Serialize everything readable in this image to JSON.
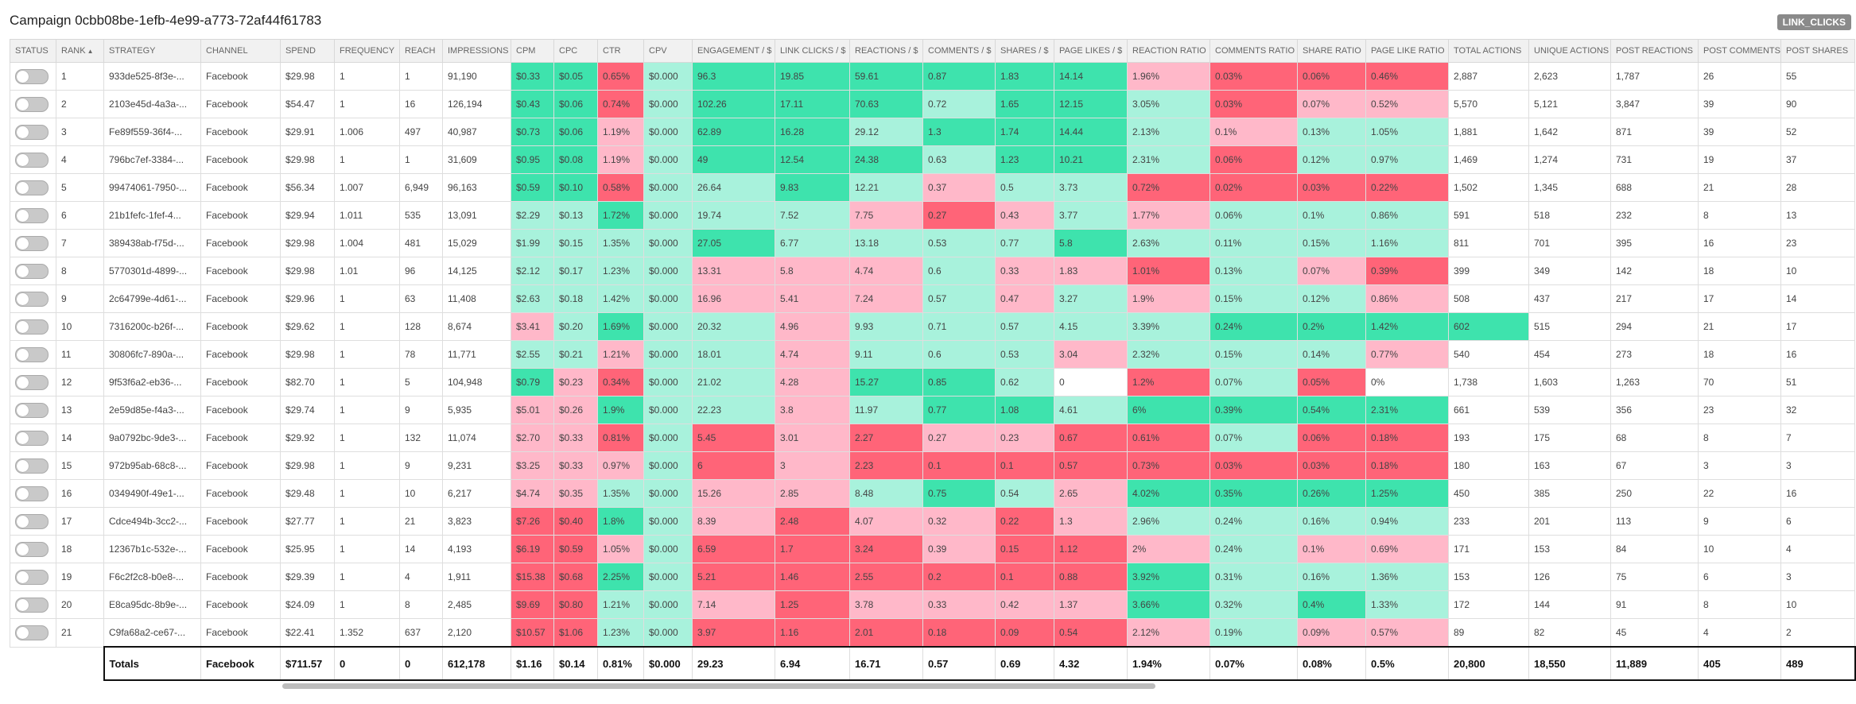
{
  "title": "Campaign 0cbb08be-1efb-4e99-a773-72af44f61783",
  "badge": "LINK_CLICKS",
  "table": {
    "columns": [
      "STATUS",
      "RANK",
      "STRATEGY",
      "CHANNEL",
      "SPEND",
      "FREQUENCY",
      "REACH",
      "IMPRESSIONS",
      "CPM",
      "CPC",
      "CTR",
      "CPV",
      "ENGAGEMENT / $",
      "LINK CLICKS / $",
      "REACTIONS / $",
      "COMMENTS / $",
      "SHARES / $",
      "PAGE LIKES / $",
      "REACTION RATIO",
      "COMMENTS RATIO",
      "SHARE RATIO",
      "PAGE LIKE RATIO",
      "TOTAL ACTIONS",
      "UNIQUE ACTIONS",
      "POST REACTIONS",
      "POST COMMENTS",
      "POST SHARES"
    ],
    "tone_colors": {
      "G": "#3ee3ad",
      "l": "#a8f2dc",
      "p": "#ffb8c9",
      "R": "#ff6478",
      "w": "#ffffff"
    },
    "rows": [
      {
        "cells": [
          "1",
          "933de525-8f3e-...",
          "Facebook",
          "$29.98",
          "1",
          "1",
          "91,190",
          "$0.33",
          "$0.05",
          "0.65%",
          "$0.000",
          "96.3",
          "19.85",
          "59.61",
          "0.87",
          "1.83",
          "14.14",
          "1.96%",
          "0.03%",
          "0.06%",
          "0.46%",
          "2,887",
          "2,623",
          "1,787",
          "26",
          "55"
        ],
        "tones": "GGRlGGGGGGpRRR"
      },
      {
        "cells": [
          "2",
          "2103e45d-4a3a-...",
          "Facebook",
          "$54.47",
          "1",
          "16",
          "126,194",
          "$0.43",
          "$0.06",
          "0.74%",
          "$0.000",
          "102.26",
          "17.11",
          "70.63",
          "0.72",
          "1.65",
          "12.15",
          "3.05%",
          "0.03%",
          "0.07%",
          "0.52%",
          "5,570",
          "5,121",
          "3,847",
          "39",
          "90"
        ],
        "tones": "GGRlGGGlGGlRpp"
      },
      {
        "cells": [
          "3",
          "Fe89f559-36f4-...",
          "Facebook",
          "$29.91",
          "1.006",
          "497",
          "40,987",
          "$0.73",
          "$0.06",
          "1.19%",
          "$0.000",
          "62.89",
          "16.28",
          "29.12",
          "1.3",
          "1.74",
          "14.44",
          "2.13%",
          "0.1%",
          "0.13%",
          "1.05%",
          "1,881",
          "1,642",
          "871",
          "39",
          "52"
        ],
        "tones": "GGplGGlGGGlpll"
      },
      {
        "cells": [
          "4",
          "796bc7ef-3384-...",
          "Facebook",
          "$29.98",
          "1",
          "1",
          "31,609",
          "$0.95",
          "$0.08",
          "1.19%",
          "$0.000",
          "49",
          "12.54",
          "24.38",
          "0.63",
          "1.23",
          "10.21",
          "2.31%",
          "0.06%",
          "0.12%",
          "0.97%",
          "1,469",
          "1,274",
          "731",
          "19",
          "37"
        ],
        "tones": "GGplGGGlGGlRll"
      },
      {
        "cells": [
          "5",
          "99474061-7950-...",
          "Facebook",
          "$56.34",
          "1.007",
          "6,949",
          "96,163",
          "$0.59",
          "$0.10",
          "0.58%",
          "$0.000",
          "26.64",
          "9.83",
          "12.21",
          "0.37",
          "0.5",
          "3.73",
          "0.72%",
          "0.02%",
          "0.03%",
          "0.22%",
          "1,502",
          "1,345",
          "688",
          "21",
          "28"
        ],
        "tones": "GGRllGlpllRRRR"
      },
      {
        "cells": [
          "6",
          "21b1fefc-1fef-4...",
          "Facebook",
          "$29.94",
          "1.011",
          "535",
          "13,091",
          "$2.29",
          "$0.13",
          "1.72%",
          "$0.000",
          "19.74",
          "7.52",
          "7.75",
          "0.27",
          "0.43",
          "3.77",
          "1.77%",
          "0.06%",
          "0.1%",
          "0.86%",
          "591",
          "518",
          "232",
          "8",
          "13"
        ],
        "tones": "llGlllpRplplll"
      },
      {
        "cells": [
          "7",
          "389438ab-f75d-...",
          "Facebook",
          "$29.98",
          "1.004",
          "481",
          "15,029",
          "$1.99",
          "$0.15",
          "1.35%",
          "$0.000",
          "27.05",
          "6.77",
          "13.18",
          "0.53",
          "0.77",
          "5.8",
          "2.63%",
          "0.11%",
          "0.15%",
          "1.16%",
          "811",
          "701",
          "395",
          "16",
          "23"
        ],
        "tones": "llllGllllGllll"
      },
      {
        "cells": [
          "8",
          "5770301d-4899-...",
          "Facebook",
          "$29.98",
          "1.01",
          "96",
          "14,125",
          "$2.12",
          "$0.17",
          "1.23%",
          "$0.000",
          "13.31",
          "5.8",
          "4.74",
          "0.6",
          "0.33",
          "1.83",
          "1.01%",
          "0.13%",
          "0.07%",
          "0.39%",
          "399",
          "349",
          "142",
          "18",
          "10"
        ],
        "tones": "llllppplppRlpR"
      },
      {
        "cells": [
          "9",
          "2c64799e-4d61-...",
          "Facebook",
          "$29.96",
          "1",
          "63",
          "11,408",
          "$2.63",
          "$0.18",
          "1.42%",
          "$0.000",
          "16.96",
          "5.41",
          "7.24",
          "0.57",
          "0.47",
          "3.27",
          "1.9%",
          "0.15%",
          "0.12%",
          "0.86%",
          "508",
          "437",
          "217",
          "17",
          "14"
        ],
        "tones": "llllppplplpllp"
      },
      {
        "cells": [
          "10",
          "7316200c-b26f-...",
          "Facebook",
          "$29.62",
          "1",
          "128",
          "8,674",
          "$3.41",
          "$0.20",
          "1.69%",
          "$0.000",
          "20.32",
          "4.96",
          "9.93",
          "0.71",
          "0.57",
          "4.15",
          "3.39%",
          "0.24%",
          "0.2%",
          "1.42%",
          "602",
          "515",
          "294",
          "21",
          "17"
        ],
        "tones": "plGllplllllGGGG"
      },
      {
        "cells": [
          "11",
          "30806fc7-890a-...",
          "Facebook",
          "$29.98",
          "1",
          "78",
          "11,771",
          "$2.55",
          "$0.21",
          "1.21%",
          "$0.000",
          "18.01",
          "4.74",
          "9.11",
          "0.6",
          "0.53",
          "3.04",
          "2.32%",
          "0.15%",
          "0.14%",
          "0.77%",
          "540",
          "454",
          "273",
          "18",
          "16"
        ],
        "tones": "llpllplllplllp"
      },
      {
        "cells": [
          "12",
          "9f53f6a2-eb36-...",
          "Facebook",
          "$82.70",
          "1",
          "5",
          "104,948",
          "$0.79",
          "$0.23",
          "0.34%",
          "$0.000",
          "21.02",
          "4.28",
          "15.27",
          "0.85",
          "0.62",
          "0",
          "1.2%",
          "0.07%",
          "0.05%",
          "0%",
          "1,738",
          "1,603",
          "1,263",
          "70",
          "51"
        ],
        "tones": "GpRllpGGlwRlRw"
      },
      {
        "cells": [
          "13",
          "2e59d85e-f4a3-...",
          "Facebook",
          "$29.74",
          "1",
          "9",
          "5,935",
          "$5.01",
          "$0.26",
          "1.9%",
          "$0.000",
          "22.23",
          "3.8",
          "11.97",
          "0.77",
          "1.08",
          "4.61",
          "6%",
          "0.39%",
          "0.54%",
          "2.31%",
          "661",
          "539",
          "356",
          "23",
          "32"
        ],
        "tones": "ppGllplGGlGGGG"
      },
      {
        "cells": [
          "14",
          "9a0792bc-9de3-...",
          "Facebook",
          "$29.92",
          "1",
          "132",
          "11,074",
          "$2.70",
          "$0.33",
          "0.81%",
          "$0.000",
          "5.45",
          "3.01",
          "2.27",
          "0.27",
          "0.23",
          "0.67",
          "0.61%",
          "0.07%",
          "0.06%",
          "0.18%",
          "193",
          "175",
          "68",
          "8",
          "7"
        ],
        "tones": "ppRlRpRppRRlRR"
      },
      {
        "cells": [
          "15",
          "972b95ab-68c8-...",
          "Facebook",
          "$29.98",
          "1",
          "9",
          "9,231",
          "$3.25",
          "$0.33",
          "0.97%",
          "$0.000",
          "6",
          "3",
          "2.23",
          "0.1",
          "0.1",
          "0.57",
          "0.73%",
          "0.03%",
          "0.03%",
          "0.18%",
          "180",
          "163",
          "67",
          "3",
          "3"
        ],
        "tones": "ppplRpRRRRRRRR"
      },
      {
        "cells": [
          "16",
          "0349490f-49e1-...",
          "Facebook",
          "$29.48",
          "1",
          "10",
          "6,217",
          "$4.74",
          "$0.35",
          "1.35%",
          "$0.000",
          "15.26",
          "2.85",
          "8.48",
          "0.75",
          "0.54",
          "2.65",
          "4.02%",
          "0.35%",
          "0.26%",
          "1.25%",
          "450",
          "385",
          "250",
          "22",
          "16"
        ],
        "tones": "ppllpplGlpGGGG"
      },
      {
        "cells": [
          "17",
          "Cdce494b-3cc2-...",
          "Facebook",
          "$27.77",
          "1",
          "21",
          "3,823",
          "$7.26",
          "$0.40",
          "1.8%",
          "$0.000",
          "8.39",
          "2.48",
          "4.07",
          "0.32",
          "0.22",
          "1.3",
          "2.96%",
          "0.24%",
          "0.16%",
          "0.94%",
          "233",
          "201",
          "113",
          "9",
          "6"
        ],
        "tones": "RRGlpRppRpllll"
      },
      {
        "cells": [
          "18",
          "12367b1c-532e-...",
          "Facebook",
          "$25.95",
          "1",
          "14",
          "4,193",
          "$6.19",
          "$0.59",
          "1.05%",
          "$0.000",
          "6.59",
          "1.7",
          "3.24",
          "0.39",
          "0.15",
          "1.12",
          "2%",
          "0.24%",
          "0.1%",
          "0.69%",
          "171",
          "153",
          "84",
          "10",
          "4"
        ],
        "tones": "RRplRRRpRRplpp"
      },
      {
        "cells": [
          "19",
          "F6c2f2c8-b0e8-...",
          "Facebook",
          "$29.39",
          "1",
          "4",
          "1,911",
          "$15.38",
          "$0.68",
          "2.25%",
          "$0.000",
          "5.21",
          "1.46",
          "2.55",
          "0.2",
          "0.1",
          "0.88",
          "3.92%",
          "0.31%",
          "0.16%",
          "1.36%",
          "153",
          "126",
          "75",
          "6",
          "3"
        ],
        "tones": "RRGlRRRRRRGlll"
      },
      {
        "cells": [
          "20",
          "E8ca95dc-8b9e-...",
          "Facebook",
          "$24.09",
          "1",
          "8",
          "2,485",
          "$9.69",
          "$0.80",
          "1.21%",
          "$0.000",
          "7.14",
          "1.25",
          "3.78",
          "0.33",
          "0.42",
          "1.37",
          "3.66%",
          "0.32%",
          "0.4%",
          "1.33%",
          "172",
          "144",
          "91",
          "8",
          "10"
        ],
        "tones": "RRllpRppppGlGl"
      },
      {
        "cells": [
          "21",
          "C9fa68a2-ce67-...",
          "Facebook",
          "$22.41",
          "1.352",
          "637",
          "2,120",
          "$10.57",
          "$1.06",
          "1.23%",
          "$0.000",
          "3.97",
          "1.16",
          "2.01",
          "0.18",
          "0.09",
          "0.54",
          "2.12%",
          "0.19%",
          "0.09%",
          "0.57%",
          "89",
          "82",
          "45",
          "4",
          "2"
        ],
        "tones": "RRllRRRRRRplpp"
      }
    ],
    "totals": [
      "Totals",
      "Facebook",
      "$711.57",
      "0",
      "0",
      "612,178",
      "$1.16",
      "$0.14",
      "0.81%",
      "$0.000",
      "29.23",
      "6.94",
      "16.71",
      "0.57",
      "0.69",
      "4.32",
      "1.94%",
      "0.07%",
      "0.08%",
      "0.5%",
      "20,800",
      "18,550",
      "11,889",
      "405",
      "489"
    ]
  }
}
